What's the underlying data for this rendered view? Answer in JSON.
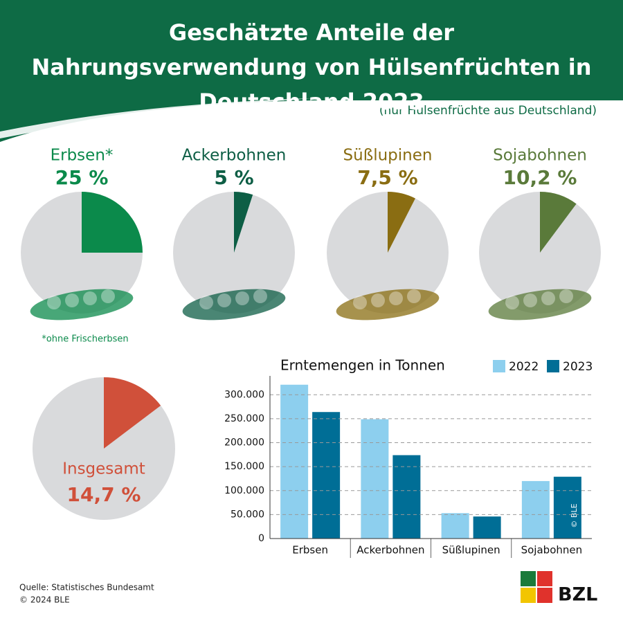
{
  "title": "Geschätzte Anteile der Nahrungsverwendung von Hülsenfrüchten in Deutschland 2023",
  "subtitle": "(nur Hülsenfrüchte aus Deutschland)",
  "footnote": "*ohne Frischerbsen",
  "source": [
    "Quelle: Statistisches Bundesamt",
    "© 2024 BLE"
  ],
  "logo": "BZL",
  "watermark": "© BLE",
  "chart_data": [
    {
      "type": "pie",
      "title": "Erbsen*",
      "values": [
        25
      ],
      "value_labels": [
        "25 %"
      ],
      "color": "#0b8a4b"
    },
    {
      "type": "pie",
      "title": "Ackerbohnen",
      "values": [
        5
      ],
      "value_labels": [
        "5 %"
      ],
      "color": "#0d5e45"
    },
    {
      "type": "pie",
      "title": "Süßlupinen",
      "values": [
        7.5
      ],
      "value_labels": [
        "7,5 %"
      ],
      "color": "#8a6d12"
    },
    {
      "type": "pie",
      "title": "Sojabohnen",
      "values": [
        10.2
      ],
      "value_labels": [
        "10,2 %"
      ],
      "color": "#5a7a3a"
    },
    {
      "type": "pie",
      "title": "Insgesamt",
      "values": [
        14.7
      ],
      "value_labels": [
        "14,7 %"
      ],
      "color": "#d0503a"
    },
    {
      "type": "bar",
      "title": "Erntemengen in Tonnen",
      "categories": [
        "Erbsen",
        "Ackerbohnen",
        "Süßlupinen",
        "Sojabohnen"
      ],
      "series": [
        {
          "name": "2022",
          "color": "#8dcfee",
          "values": [
            321000,
            249000,
            53000,
            120000
          ]
        },
        {
          "name": "2023",
          "color": "#006e96",
          "values": [
            264000,
            174000,
            46000,
            129000
          ]
        }
      ],
      "ylim": [
        0,
        325000
      ],
      "yticks": [
        0,
        {
          "value": 50000,
          "label": "50.000"
        },
        {
          "value": 100000,
          "label": "100.000"
        },
        {
          "value": 150000,
          "label": "150.000"
        },
        {
          "value": 200000,
          "label": "200.000"
        },
        {
          "value": 250000,
          "label": "250.000"
        },
        {
          "value": 300000,
          "label": "300.000"
        }
      ],
      "grid": true,
      "legend": "top-right"
    }
  ]
}
